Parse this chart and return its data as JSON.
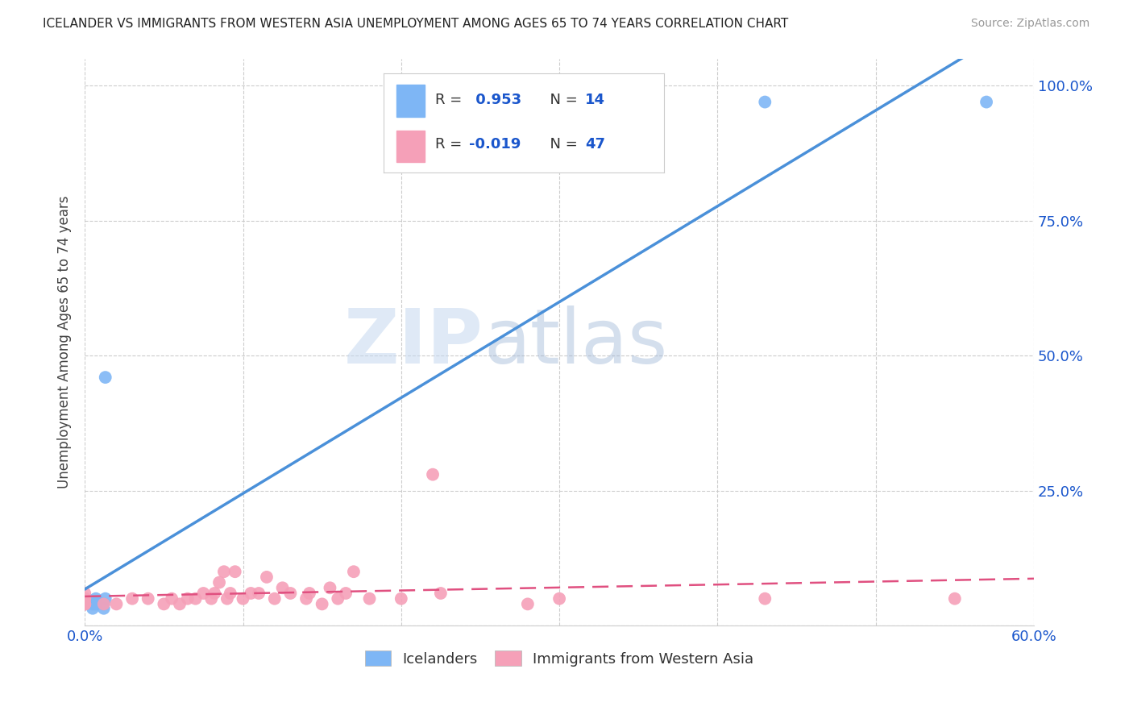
{
  "title": "ICELANDER VS IMMIGRANTS FROM WESTERN ASIA UNEMPLOYMENT AMONG AGES 65 TO 74 YEARS CORRELATION CHART",
  "source": "Source: ZipAtlas.com",
  "ylabel": "Unemployment Among Ages 65 to 74 years",
  "xlim": [
    0.0,
    0.6
  ],
  "ylim": [
    0.0,
    1.05
  ],
  "xticks": [
    0.0,
    0.1,
    0.2,
    0.3,
    0.4,
    0.5,
    0.6
  ],
  "xticklabels": [
    "0.0%",
    "",
    "",
    "",
    "",
    "",
    "60.0%"
  ],
  "yticks": [
    0.0,
    0.25,
    0.5,
    0.75,
    1.0
  ],
  "yticklabels_right": [
    "",
    "25.0%",
    "50.0%",
    "75.0%",
    "100.0%"
  ],
  "icelanders_color": "#7EB6F5",
  "immigrants_color": "#F5A0B8",
  "icelanders_line_color": "#4A90D9",
  "immigrants_line_color": "#E05080",
  "icelanders_R": 0.953,
  "icelanders_N": 14,
  "immigrants_R": -0.019,
  "immigrants_N": 47,
  "watermark_zip": "ZIP",
  "watermark_atlas": "atlas",
  "background_color": "#FFFFFF",
  "grid_color": "#CCCCCC",
  "legend_R_color": "#1A56CC",
  "legend_N_color": "#1A56CC",
  "icelanders_x": [
    0.0,
    0.0,
    0.0,
    0.005,
    0.005,
    0.007,
    0.007,
    0.007,
    0.012,
    0.012,
    0.013,
    0.013,
    0.43,
    0.57
  ],
  "icelanders_y": [
    0.04,
    0.045,
    0.05,
    0.032,
    0.04,
    0.04,
    0.042,
    0.05,
    0.032,
    0.04,
    0.05,
    0.46,
    0.97,
    0.97
  ],
  "immigrants_x": [
    0.0,
    0.0,
    0.0,
    0.0,
    0.0,
    0.0,
    0.0,
    0.0,
    0.012,
    0.02,
    0.03,
    0.04,
    0.05,
    0.055,
    0.06,
    0.065,
    0.07,
    0.075,
    0.08,
    0.082,
    0.085,
    0.088,
    0.09,
    0.092,
    0.095,
    0.1,
    0.105,
    0.11,
    0.115,
    0.12,
    0.125,
    0.13,
    0.14,
    0.142,
    0.15,
    0.155,
    0.16,
    0.165,
    0.17,
    0.18,
    0.2,
    0.22,
    0.225,
    0.28,
    0.3,
    0.43,
    0.55
  ],
  "immigrants_y": [
    0.04,
    0.04,
    0.04,
    0.04,
    0.05,
    0.05,
    0.05,
    0.06,
    0.04,
    0.04,
    0.05,
    0.05,
    0.04,
    0.05,
    0.04,
    0.05,
    0.05,
    0.06,
    0.05,
    0.06,
    0.08,
    0.1,
    0.05,
    0.06,
    0.1,
    0.05,
    0.06,
    0.06,
    0.09,
    0.05,
    0.07,
    0.06,
    0.05,
    0.06,
    0.04,
    0.07,
    0.05,
    0.06,
    0.1,
    0.05,
    0.05,
    0.28,
    0.06,
    0.04,
    0.05,
    0.05,
    0.05
  ]
}
